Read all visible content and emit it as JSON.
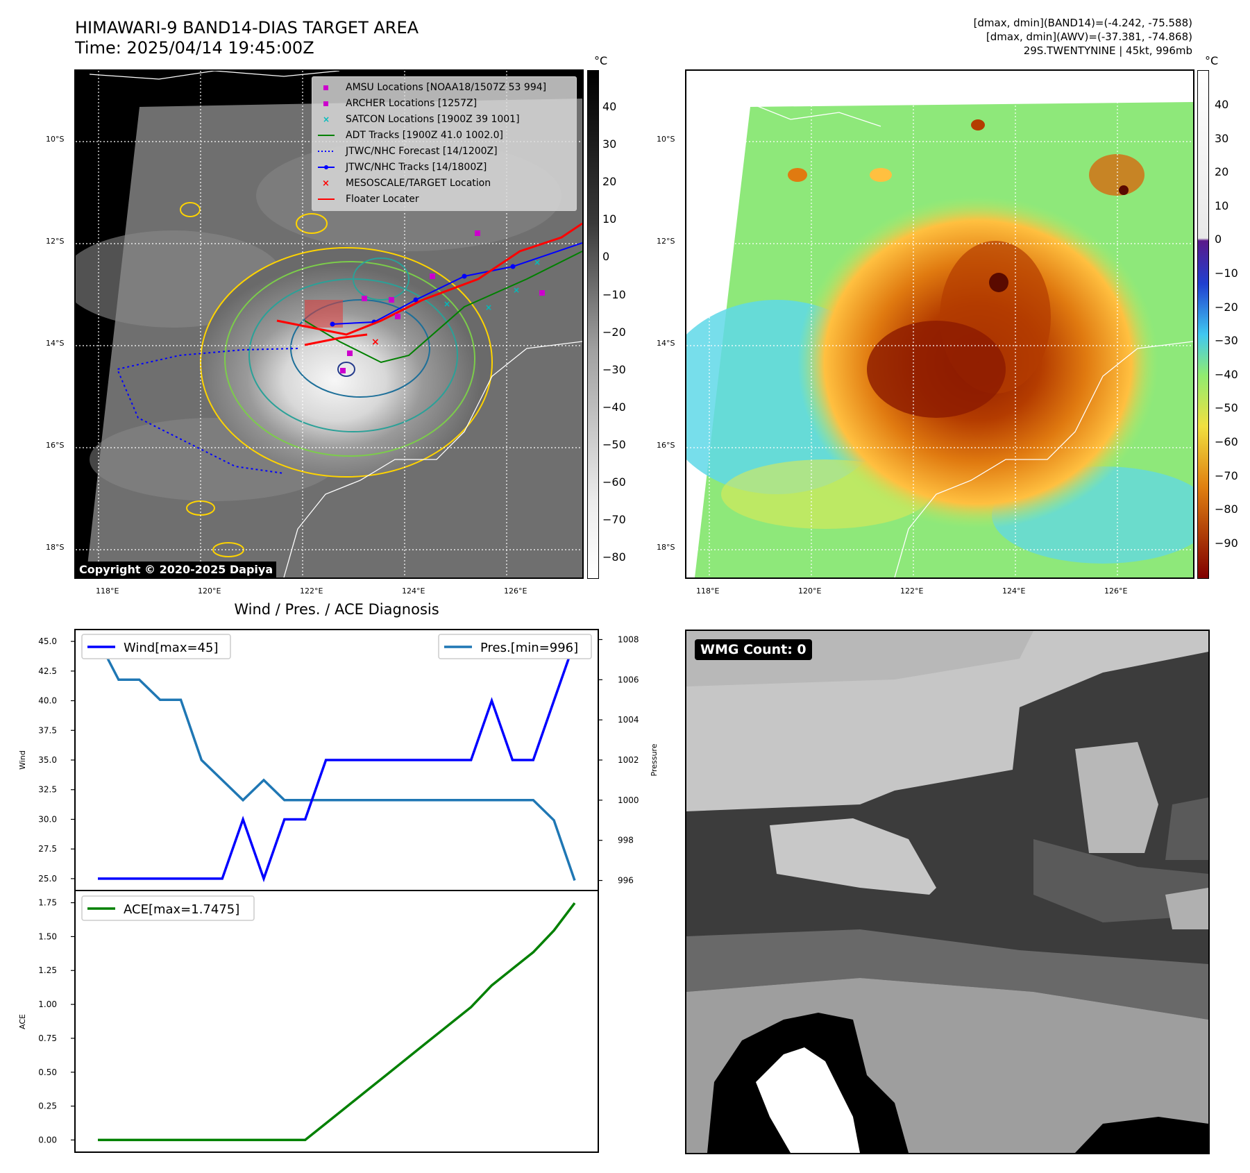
{
  "header": {
    "title_line1": "HIMAWARI-9 BAND14-DIAS TARGET AREA",
    "title_line2": "Time: 2025/04/14 19:45:00Z",
    "right_line1": "[dmax, dmin](BAND14)=(-4.242, -75.588)",
    "right_line2": "[dmax, dmin](AWV)=(-37.381, -74.868)",
    "right_line3": "29S.TWENTYNINE | 45kt, 996mb"
  },
  "map_axes": {
    "lat_labels": [
      "10°S",
      "12°S",
      "14°S",
      "16°S",
      "18°S"
    ],
    "lon_labels": [
      "118°E",
      "120°E",
      "122°E",
      "124°E",
      "126°E"
    ]
  },
  "colorbar_gray": {
    "unit": "°C",
    "ticks": [
      "40",
      "30",
      "20",
      "10",
      "0",
      "−10",
      "−20",
      "−30",
      "−40",
      "−50",
      "−60",
      "−70",
      "−80"
    ]
  },
  "colorbar_color": {
    "unit": "°C",
    "ticks": [
      "40",
      "30",
      "20",
      "10",
      "0",
      "−10",
      "−20",
      "−30",
      "−40",
      "−50",
      "−60",
      "−70",
      "−80",
      "−90"
    ]
  },
  "legend": {
    "amsu": "AMSU Locations [NOAA18/1507Z 53 994]",
    "archer": "ARCHER Locations [1257Z]",
    "satcon": "SATCON Locations [1900Z 39 1001]",
    "adt": "ADT Tracks [1900Z 41.0 1002.0]",
    "forecast": "JTWC/NHC Forecast [14/1200Z]",
    "tracks": "JTWC/NHC Tracks [14/1800Z]",
    "target": "MESOSCALE/TARGET Location",
    "floater": "Floater Locater"
  },
  "copyright": "Copyright © 2020-2025 Dapiya",
  "wmg_count": "WMG Count: 0",
  "colors": {
    "wind": "#0000ff",
    "pressure": "#1f77b4",
    "ace": "#008000",
    "track_red": "#ff0000",
    "adt_green": "#008000"
  },
  "chart_data": {
    "type": "line",
    "title": "Wind / Pres. / ACE Diagnosis",
    "panels": [
      {
        "ylabel": "Wind",
        "ylim": [
          24.0,
          46.0
        ],
        "yticks": [
          "45.0",
          "42.5",
          "40.0",
          "37.5",
          "35.0",
          "32.5",
          "30.0",
          "27.5",
          "25.0"
        ],
        "series": [
          {
            "name": "Wind[max=45]",
            "values": [
              25,
              25,
              25,
              25,
              25,
              25,
              25,
              30,
              25,
              30,
              30,
              35,
              35,
              35,
              35,
              35,
              35,
              35,
              35,
              40,
              35,
              35,
              40,
              45
            ]
          }
        ]
      },
      {
        "ylabel": "Pressure",
        "ylim": [
          995.5,
          1008.5
        ],
        "yticks": [
          "1008",
          "1006",
          "1004",
          "1002",
          "1000",
          "998",
          "996"
        ],
        "series": [
          {
            "name": "Pres.[min=996]",
            "values": [
              1008,
              1006,
              1006,
              1005,
              1005,
              1002,
              1001,
              1000,
              1001,
              1000,
              1000,
              1000,
              1000,
              1000,
              1000,
              1000,
              1000,
              1000,
              1000,
              1000,
              1000,
              1000,
              999,
              996
            ]
          }
        ]
      },
      {
        "ylabel": "ACE",
        "ylim": [
          -0.09,
          1.84
        ],
        "yticks": [
          "1.75",
          "1.50",
          "1.25",
          "1.00",
          "0.75",
          "0.50",
          "0.25",
          "0.00"
        ],
        "series": [
          {
            "name": "ACE[max=1.7475]",
            "values": [
              0,
              0,
              0,
              0,
              0,
              0,
              0,
              0,
              0,
              0,
              0,
              0.1225,
              0.245,
              0.3675,
              0.49,
              0.6125,
              0.735,
              0.8575,
              0.98,
              1.14,
              1.2625,
              1.385,
              1.545,
              1.7475
            ]
          }
        ]
      }
    ]
  }
}
